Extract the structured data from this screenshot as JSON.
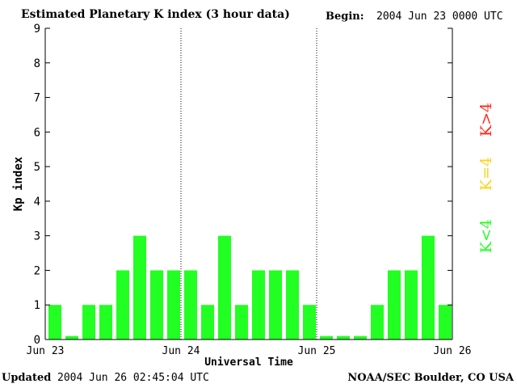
{
  "header": {
    "title": "Estimated Planetary K index (3 hour data)",
    "begin_label": "Begin:",
    "begin_value": "2004 Jun 23 0000 UTC"
  },
  "footer": {
    "updated_label": "Updated",
    "updated_value": "2004 Jun 26 02:45:04 UTC",
    "credit": "NOAA/SEC Boulder, CO USA"
  },
  "colors": {
    "below_storm": "#22ff22",
    "storm_threshold": "#ffd21a",
    "storm": "#ff2a1a",
    "axis": "#000000"
  },
  "chart_data": {
    "type": "bar",
    "ylabel": "Kp index",
    "xlabel": "Universal Time",
    "ylim": [
      0,
      9
    ],
    "y_ticks": [
      0,
      1,
      2,
      3,
      4,
      5,
      6,
      7,
      8,
      9
    ],
    "x_ticks": [
      "Jun 23",
      "Jun 24",
      "Jun 25",
      "Jun 26"
    ],
    "day_separators": [
      "Jun 24",
      "Jun 25"
    ],
    "interval_hours": 3,
    "values": [
      1,
      0.1,
      1,
      1,
      2,
      3,
      2,
      2,
      2,
      1,
      3,
      1,
      2,
      2,
      2,
      1,
      0.1,
      0.1,
      0.1,
      1,
      2,
      2,
      3,
      1
    ],
    "legend": [
      {
        "label": "K<4",
        "color": "#22ff22"
      },
      {
        "label": "K=4",
        "color": "#ffd21a"
      },
      {
        "label": "K>4",
        "color": "#ff2a1a"
      }
    ]
  }
}
